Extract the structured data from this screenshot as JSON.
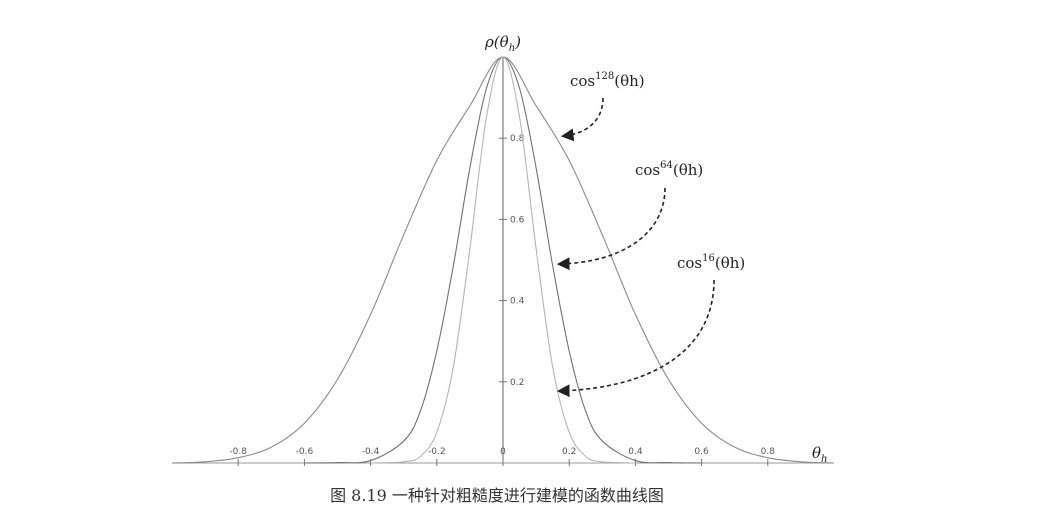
{
  "chart_data": {
    "type": "line",
    "title": "",
    "xlabel": "θh",
    "ylabel": "ρ(θh)",
    "xlim": [
      -1.0,
      1.0
    ],
    "ylim": [
      0,
      1
    ],
    "grid": false,
    "x_ticks": [
      {
        "value": -0.8,
        "label": "-0.8"
      },
      {
        "value": -0.6,
        "label": "-0.6"
      },
      {
        "value": -0.4,
        "label": "-0.4"
      },
      {
        "value": -0.2,
        "label": "-0.2"
      },
      {
        "value": 0,
        "label": "0"
      },
      {
        "value": 0.2,
        "label": "0.2"
      },
      {
        "value": 0.4,
        "label": "0.4"
      },
      {
        "value": 0.6,
        "label": "0.6"
      },
      {
        "value": 0.8,
        "label": "0.8"
      }
    ],
    "y_ticks": [
      {
        "value": 0.2,
        "label": "0.2"
      },
      {
        "value": 0.4,
        "label": "0.4"
      },
      {
        "value": 0.6,
        "label": "0.6"
      },
      {
        "value": 0.8,
        "label": "0.8"
      }
    ],
    "series": [
      {
        "name": "cos16(θh)",
        "label_base": "cos",
        "label_exp": "16",
        "label_arg": "(θh)",
        "x": [
          -1.0,
          -0.9,
          -0.8,
          -0.7,
          -0.6,
          -0.5,
          -0.4,
          -0.3,
          -0.2,
          -0.1,
          0,
          0.1,
          0.2,
          0.3,
          0.4,
          0.5,
          0.6,
          0.7,
          0.8,
          0.9,
          1.0
        ],
        "y": [
          0.0,
          0.003,
          0.013,
          0.039,
          0.098,
          0.206,
          0.366,
          0.562,
          0.745,
          0.88,
          1.0,
          0.88,
          0.745,
          0.562,
          0.366,
          0.206,
          0.098,
          0.039,
          0.013,
          0.003,
          0.0
        ],
        "color": "#8a8a8a"
      },
      {
        "name": "cos64(θh)",
        "label_base": "cos",
        "label_exp": "64",
        "label_arg": "(θh)",
        "x": [
          -0.6,
          -0.5,
          -0.4,
          -0.3,
          -0.25,
          -0.2,
          -0.15,
          -0.1,
          -0.05,
          0,
          0.05,
          0.1,
          0.15,
          0.2,
          0.25,
          0.3,
          0.4,
          0.5,
          0.6
        ],
        "y": [
          0.0,
          0.001,
          0.006,
          0.054,
          0.127,
          0.276,
          0.486,
          0.727,
          0.923,
          1.0,
          0.923,
          0.727,
          0.486,
          0.276,
          0.127,
          0.054,
          0.006,
          0.001,
          0.0
        ],
        "color": "#707070"
      },
      {
        "name": "cos128(θh)",
        "label_base": "cos",
        "label_exp": "128",
        "label_arg": "(θh)",
        "x": [
          -0.4,
          -0.3,
          -0.25,
          -0.2,
          -0.15,
          -0.1,
          -0.05,
          0,
          0.05,
          0.1,
          0.15,
          0.2,
          0.25,
          0.3,
          0.4
        ],
        "y": [
          0.0,
          0.003,
          0.016,
          0.076,
          0.237,
          0.528,
          0.852,
          1.0,
          0.852,
          0.528,
          0.237,
          0.076,
          0.016,
          0.003,
          0.0
        ],
        "color": "#b5b5b5"
      }
    ],
    "annotations": [
      {
        "series": "cos128(θh)",
        "base": "cos",
        "exp": "128",
        "arg": "(θh)"
      },
      {
        "series": "cos64(θh)",
        "base": "cos",
        "exp": "64",
        "arg": "(θh)"
      },
      {
        "series": "cos16(θh)",
        "base": "cos",
        "exp": "16",
        "arg": "(θh)"
      }
    ]
  },
  "caption": "图 8.19   一种针对粗糙度进行建模的函数曲线图"
}
